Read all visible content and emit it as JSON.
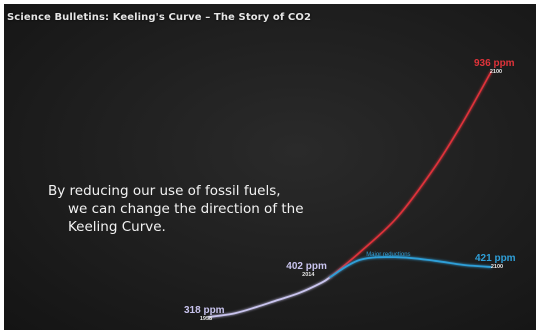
{
  "window": {
    "title": "Science Bulletins: Keeling's Curve – The Story of CO2"
  },
  "caption": {
    "line1": "By reducing our use of fossil fuels,",
    "line2": "we can change the direction of the",
    "line3": "Keeling Curve."
  },
  "colors": {
    "background": "#1e1e1e",
    "historical": "#c9c4ee",
    "business_as_usual": "#e0333a",
    "major_reductions": "#2f9fd8",
    "text": "#f2f2f2"
  },
  "chart_data": {
    "type": "line",
    "title": "",
    "xlabel": "",
    "ylabel": "",
    "xlim": [
      1958,
      2100
    ],
    "ylim": [
      300,
      950
    ],
    "grid": false,
    "series": [
      {
        "key": "historical",
        "x": [
          1958,
          1970,
          1980,
          1990,
          2000,
          2010,
          2014
        ],
        "y": [
          318,
          326,
          339,
          354,
          369,
          390,
          402
        ]
      },
      {
        "key": "business_as_usual",
        "x": [
          2014,
          2030,
          2050,
          2070,
          2085,
          2100
        ],
        "y": [
          402,
          450,
          540,
          660,
          780,
          936
        ]
      },
      {
        "key": "major_reductions",
        "name": "Major reductions",
        "x": [
          2014,
          2030,
          2050,
          2070,
          2085,
          2100
        ],
        "y": [
          402,
          435,
          440,
          433,
          425,
          421
        ]
      }
    ],
    "annotations": [
      {
        "value": "318 ppm",
        "year": "1958",
        "x": 1958,
        "y": 318,
        "color": "#c9c4ee"
      },
      {
        "value": "402 ppm",
        "year": "2014",
        "x": 2014,
        "y": 402,
        "color": "#c9c4ee"
      },
      {
        "value": "936 ppm",
        "year": "2100",
        "x": 2100,
        "y": 936,
        "color": "#e0333a"
      },
      {
        "value": "421 ppm",
        "year": "2100",
        "x": 2100,
        "y": 421,
        "color": "#2f9fd8"
      }
    ]
  }
}
